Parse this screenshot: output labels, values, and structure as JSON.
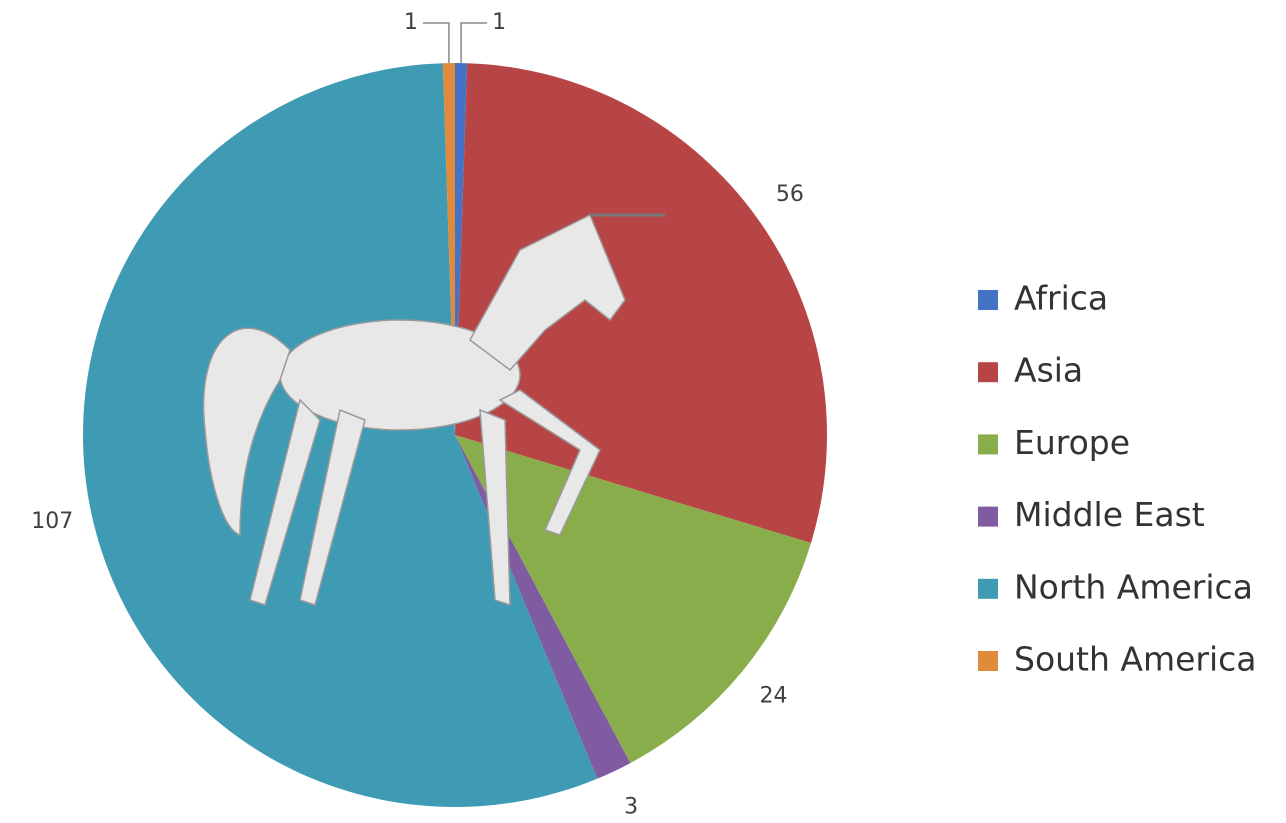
{
  "chart_data": {
    "type": "pie",
    "categories": [
      "Africa",
      "Asia",
      "Europe",
      "Middle East",
      "North America",
      "South America"
    ],
    "values": [
      1,
      56,
      24,
      3,
      107,
      1
    ],
    "colors": [
      "#4472c4",
      "#b84545",
      "#8aad4b",
      "#7f5ba1",
      "#3f9bb4",
      "#e08a3b"
    ],
    "legend": "right"
  }
}
